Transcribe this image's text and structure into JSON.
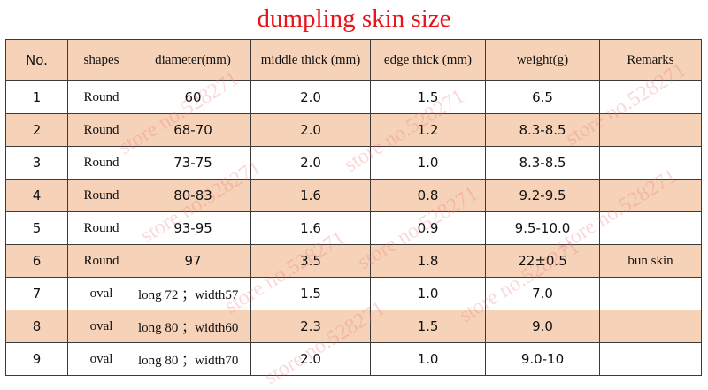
{
  "title": "dumpling skin size",
  "headers": {
    "no": "No.",
    "shapes": "shapes",
    "diameter": "diameter(mm)",
    "middle_thick": "middle thick (mm)",
    "edge_thick": "edge thick (mm)",
    "weight": "weight(g)",
    "remarks": "Remarks"
  },
  "rows": [
    {
      "no": "1",
      "shape": "Round",
      "diameter": "60",
      "middle": "2.0",
      "edge": "1.5",
      "weight": "6.5",
      "remarks": ""
    },
    {
      "no": "2",
      "shape": "Round",
      "diameter": "68-70",
      "middle": "2.0",
      "edge": "1.2",
      "weight": "8.3-8.5",
      "remarks": ""
    },
    {
      "no": "3",
      "shape": "Round",
      "diameter": "73-75",
      "middle": "2.0",
      "edge": "1.0",
      "weight": "8.3-8.5",
      "remarks": ""
    },
    {
      "no": "4",
      "shape": "Round",
      "diameter": "80-83",
      "middle": "1.6",
      "edge": "0.8",
      "weight": "9.2-9.5",
      "remarks": ""
    },
    {
      "no": "5",
      "shape": "Round",
      "diameter": "93-95",
      "middle": "1.6",
      "edge": "0.9",
      "weight": "9.5-10.0",
      "remarks": ""
    },
    {
      "no": "6",
      "shape": "Round",
      "diameter": "97",
      "middle": "3.5",
      "edge": "1.8",
      "weight": "22±0.5",
      "remarks": "bun skin"
    },
    {
      "no": "7",
      "shape": "oval",
      "diameter": "long 72 ；width57",
      "middle": "1.5",
      "edge": "1.0",
      "weight": "7.0",
      "remarks": ""
    },
    {
      "no": "8",
      "shape": "oval",
      "diameter": "long 80 ；width60",
      "middle": "2.3",
      "edge": "1.5",
      "weight": "9.0",
      "remarks": ""
    },
    {
      "no": "9",
      "shape": "oval",
      "diameter": "long 80 ；width70",
      "middle": "2.0",
      "edge": "1.0",
      "weight": "9.0-10",
      "remarks": ""
    }
  ],
  "watermark": "store no.528271",
  "colors": {
    "title": "#e8141c",
    "shade": "#f6d2b8",
    "border": "#3b3b3b"
  }
}
